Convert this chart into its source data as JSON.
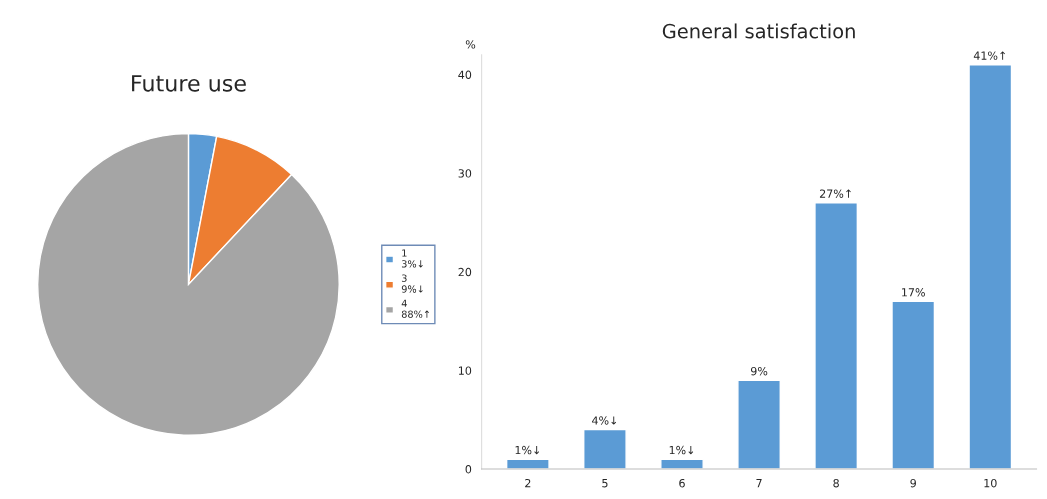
{
  "chart_data": [
    {
      "type": "pie",
      "title": "Future use",
      "categories": [
        "1",
        "3",
        "4"
      ],
      "values": [
        3,
        9,
        88
      ],
      "colors": [
        "#5b9bd5",
        "#ed7d31",
        "#a5a5a5"
      ],
      "value_labels": [
        "3%↓",
        "9%↓",
        "88%↑"
      ],
      "legend": "right"
    },
    {
      "type": "bar",
      "title": "General satisfaction",
      "ylabel": "%",
      "categories": [
        "2",
        "5",
        "6",
        "7",
        "8",
        "9",
        "10"
      ],
      "values": [
        1,
        4,
        1,
        9,
        27,
        17,
        41
      ],
      "value_labels": [
        "1%↓",
        "4%↓",
        "1%↓",
        "9%",
        "27%↑",
        "17%",
        "41%↑"
      ],
      "color": "#5b9bd5",
      "ylim": [
        0,
        42
      ],
      "yticks": [
        0,
        10,
        20,
        30,
        40
      ],
      "grid": false
    }
  ]
}
